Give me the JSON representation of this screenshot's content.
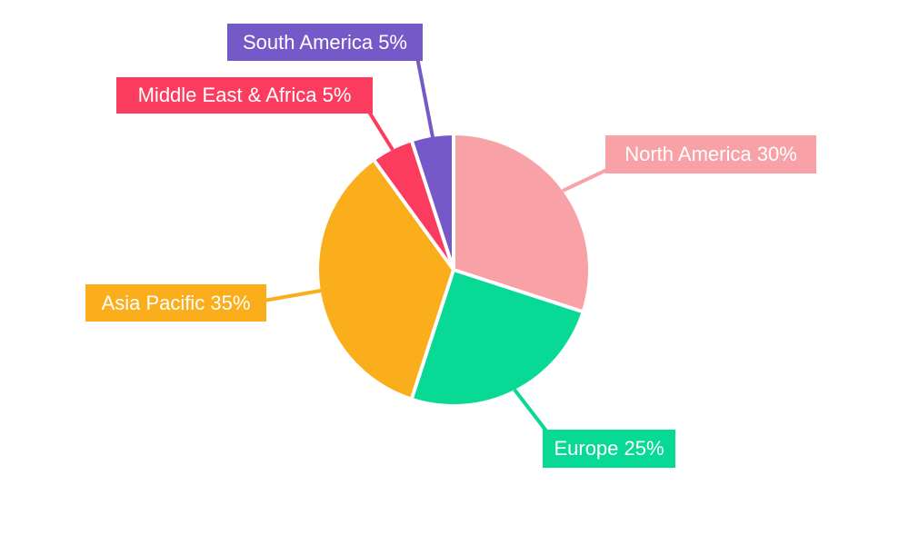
{
  "background_color": "#ffffff",
  "chart_data": {
    "type": "pie",
    "title": "",
    "unit": "%",
    "start_angle_deg_from_top": 0,
    "direction": "clockwise",
    "legend": "none",
    "label_style": "callout-boxes-with-leader-lines",
    "label_text_color": "#ffffff",
    "separator_color": "#ffffff",
    "slices": [
      {
        "label": "North America",
        "value": 30,
        "color": "#F8A1A7",
        "callout": "North America 30%"
      },
      {
        "label": "Europe",
        "value": 25,
        "color": "#08D994",
        "callout": "Europe 25%"
      },
      {
        "label": "Asia Pacific",
        "value": 35,
        "color": "#FAAE1C",
        "callout": "Asia Pacific 35%"
      },
      {
        "label": "Middle East & Africa",
        "value": 5,
        "color": "#FB3C5F",
        "callout": "Middle East & Africa 5%"
      },
      {
        "label": "South America",
        "value": 5,
        "color": "#7559C8",
        "callout": "South America 5%"
      }
    ]
  }
}
